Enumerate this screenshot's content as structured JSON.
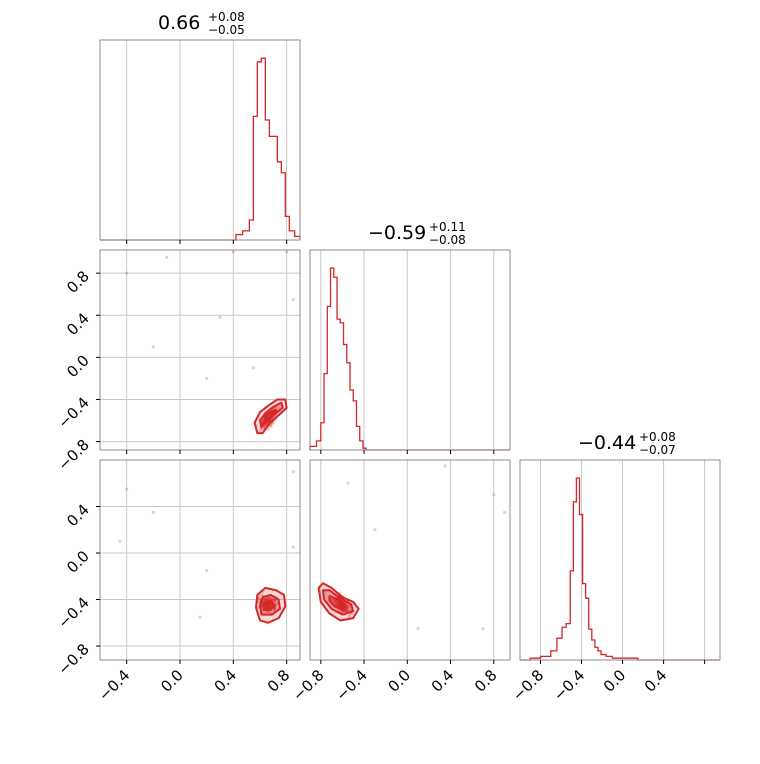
{
  "accent_color": "#d62728",
  "chart_data": [
    {
      "type": "histogram",
      "panel": "diag-1",
      "title": "0.66",
      "title_plus": "+0.08",
      "title_minus": "−0.05",
      "x_range": [
        -0.6,
        0.9
      ],
      "grid": true,
      "bins_x": [
        0.37,
        0.42,
        0.47,
        0.52,
        0.55,
        0.58,
        0.61,
        0.64,
        0.67,
        0.7,
        0.73,
        0.76,
        0.79,
        0.82,
        0.86,
        0.9
      ],
      "bins_y": [
        0,
        0.03,
        0.05,
        0.11,
        0.68,
        0.98,
        1.0,
        0.66,
        0.57,
        0.57,
        0.43,
        0.37,
        0.13,
        0.05,
        0.02
      ]
    },
    {
      "type": "histogram",
      "panel": "diag-2",
      "title": "−0.59",
      "title_plus": "+0.11",
      "title_minus": "−0.08",
      "x_range": [
        -0.9,
        0.95
      ],
      "grid": true,
      "bins_x": [
        -0.9,
        -0.84,
        -0.8,
        -0.77,
        -0.74,
        -0.71,
        -0.68,
        -0.65,
        -0.62,
        -0.59,
        -0.56,
        -0.53,
        -0.5,
        -0.47,
        -0.44,
        -0.41,
        -0.38,
        -0.35
      ],
      "bins_y": [
        0.02,
        0.05,
        0.15,
        0.42,
        0.79,
        1.0,
        0.95,
        0.72,
        0.7,
        0.58,
        0.48,
        0.33,
        0.27,
        0.13,
        0.05,
        0.01,
        0
      ]
    },
    {
      "type": "histogram",
      "panel": "diag-3",
      "title": "−0.44",
      "title_plus": "+0.08",
      "title_minus": "−0.07",
      "x_range": [
        -1.0,
        0.95
      ],
      "grid": true,
      "bins_x": [
        -0.9,
        -0.8,
        -0.7,
        -0.64,
        -0.59,
        -0.55,
        -0.51,
        -0.48,
        -0.45,
        -0.42,
        -0.39,
        -0.36,
        -0.33,
        -0.3,
        -0.27,
        -0.24,
        -0.21,
        -0.16,
        -0.1,
        0.0,
        0.15
      ],
      "bins_y": [
        0.01,
        0.02,
        0.05,
        0.12,
        0.18,
        0.2,
        0.49,
        0.87,
        1.0,
        0.8,
        0.42,
        0.34,
        0.17,
        0.11,
        0.07,
        0.05,
        0.03,
        0.02,
        0.01,
        0.01
      ]
    },
    {
      "type": "scatter",
      "panel": "cross-2-1",
      "x_range": [
        -0.6,
        0.9
      ],
      "y_range": [
        -0.88,
        1.02
      ],
      "x_ticks": [
        -0.4,
        0.0,
        0.4,
        0.8
      ],
      "y_ticks": [
        -0.8,
        -0.4,
        0.0,
        0.4,
        0.8
      ],
      "grid": true,
      "points": [
        [
          -0.4,
          0.8
        ],
        [
          -0.1,
          0.95
        ],
        [
          0.4,
          1.0
        ],
        [
          0.3,
          0.38
        ],
        [
          -0.2,
          0.1
        ],
        [
          0.8,
          1.0
        ],
        [
          0.2,
          -0.2
        ],
        [
          0.85,
          0.55
        ],
        [
          0.55,
          -0.1
        ]
      ],
      "cluster_center": [
        0.67,
        -0.58
      ],
      "contours": [
        [
          [
            0.58,
            -0.72
          ],
          [
            0.56,
            -0.62
          ],
          [
            0.6,
            -0.52
          ],
          [
            0.66,
            -0.46
          ],
          [
            0.73,
            -0.4
          ],
          [
            0.79,
            -0.4
          ],
          [
            0.8,
            -0.48
          ],
          [
            0.74,
            -0.55
          ],
          [
            0.67,
            -0.63
          ],
          [
            0.62,
            -0.72
          ],
          [
            0.58,
            -0.72
          ]
        ],
        [
          [
            0.61,
            -0.66
          ],
          [
            0.6,
            -0.6
          ],
          [
            0.64,
            -0.53
          ],
          [
            0.7,
            -0.47
          ],
          [
            0.76,
            -0.43
          ],
          [
            0.77,
            -0.48
          ],
          [
            0.71,
            -0.54
          ],
          [
            0.66,
            -0.6
          ],
          [
            0.61,
            -0.66
          ]
        ],
        [
          [
            0.63,
            -0.62
          ],
          [
            0.64,
            -0.56
          ],
          [
            0.69,
            -0.51
          ],
          [
            0.72,
            -0.5
          ],
          [
            0.7,
            -0.55
          ],
          [
            0.66,
            -0.6
          ],
          [
            0.63,
            -0.62
          ]
        ]
      ]
    },
    {
      "type": "scatter",
      "panel": "cross-3-1",
      "x_range": [
        -0.6,
        0.9
      ],
      "y_range": [
        -0.92,
        0.8
      ],
      "x_ticks": [
        -0.4,
        0.0,
        0.4,
        0.8
      ],
      "x_tick_labels": [
        "−0.4",
        "0.0",
        "0.4",
        "0.8"
      ],
      "y_ticks": [
        -0.8,
        -0.4,
        0.0,
        0.4
      ],
      "y_tick_labels": [
        "−0.8",
        "−0.4",
        "0.0",
        "0.4"
      ],
      "grid": true,
      "points": [
        [
          -0.4,
          0.55
        ],
        [
          -0.2,
          0.35
        ],
        [
          0.2,
          -0.15
        ],
        [
          0.15,
          -0.55
        ],
        [
          0.85,
          0.7
        ],
        [
          0.85,
          0.05
        ],
        [
          -0.45,
          0.1
        ]
      ],
      "cluster_center": [
        0.66,
        -0.44
      ],
      "contours": [
        [
          [
            0.6,
            -0.58
          ],
          [
            0.57,
            -0.47
          ],
          [
            0.58,
            -0.36
          ],
          [
            0.64,
            -0.3
          ],
          [
            0.72,
            -0.32
          ],
          [
            0.78,
            -0.36
          ],
          [
            0.79,
            -0.46
          ],
          [
            0.74,
            -0.56
          ],
          [
            0.66,
            -0.6
          ],
          [
            0.6,
            -0.58
          ]
        ],
        [
          [
            0.61,
            -0.53
          ],
          [
            0.6,
            -0.45
          ],
          [
            0.62,
            -0.38
          ],
          [
            0.68,
            -0.36
          ],
          [
            0.74,
            -0.4
          ],
          [
            0.75,
            -0.48
          ],
          [
            0.69,
            -0.53
          ],
          [
            0.61,
            -0.53
          ]
        ],
        [
          [
            0.63,
            -0.49
          ],
          [
            0.63,
            -0.43
          ],
          [
            0.68,
            -0.41
          ],
          [
            0.71,
            -0.45
          ],
          [
            0.68,
            -0.49
          ],
          [
            0.63,
            -0.49
          ]
        ]
      ]
    },
    {
      "type": "scatter",
      "panel": "cross-3-2",
      "x_range": [
        -0.9,
        0.95
      ],
      "y_range": [
        -0.92,
        0.8
      ],
      "x_ticks": [
        -0.8,
        -0.4,
        0.0,
        0.4,
        0.8
      ],
      "x_tick_labels": [
        "−0.8",
        "−0.4",
        "0.0",
        "0.4",
        "0.8"
      ],
      "grid": true,
      "points": [
        [
          0.35,
          0.75
        ],
        [
          0.8,
          0.5
        ],
        [
          0.9,
          0.35
        ],
        [
          0.1,
          -0.65
        ],
        [
          0.7,
          -0.65
        ],
        [
          -0.55,
          0.6
        ],
        [
          -0.3,
          0.2
        ]
      ],
      "cluster_center": [
        -0.6,
        -0.44
      ],
      "contours": [
        [
          [
            -0.82,
            -0.3
          ],
          [
            -0.78,
            -0.26
          ],
          [
            -0.7,
            -0.3
          ],
          [
            -0.6,
            -0.38
          ],
          [
            -0.5,
            -0.42
          ],
          [
            -0.45,
            -0.48
          ],
          [
            -0.5,
            -0.56
          ],
          [
            -0.62,
            -0.58
          ],
          [
            -0.72,
            -0.52
          ],
          [
            -0.8,
            -0.42
          ],
          [
            -0.82,
            -0.3
          ]
        ],
        [
          [
            -0.78,
            -0.32
          ],
          [
            -0.72,
            -0.32
          ],
          [
            -0.62,
            -0.39
          ],
          [
            -0.52,
            -0.44
          ],
          [
            -0.5,
            -0.5
          ],
          [
            -0.6,
            -0.53
          ],
          [
            -0.7,
            -0.48
          ],
          [
            -0.77,
            -0.4
          ],
          [
            -0.78,
            -0.32
          ]
        ],
        [
          [
            -0.72,
            -0.37
          ],
          [
            -0.64,
            -0.4
          ],
          [
            -0.57,
            -0.45
          ],
          [
            -0.6,
            -0.49
          ],
          [
            -0.67,
            -0.46
          ],
          [
            -0.72,
            -0.41
          ],
          [
            -0.72,
            -0.37
          ]
        ]
      ]
    }
  ]
}
